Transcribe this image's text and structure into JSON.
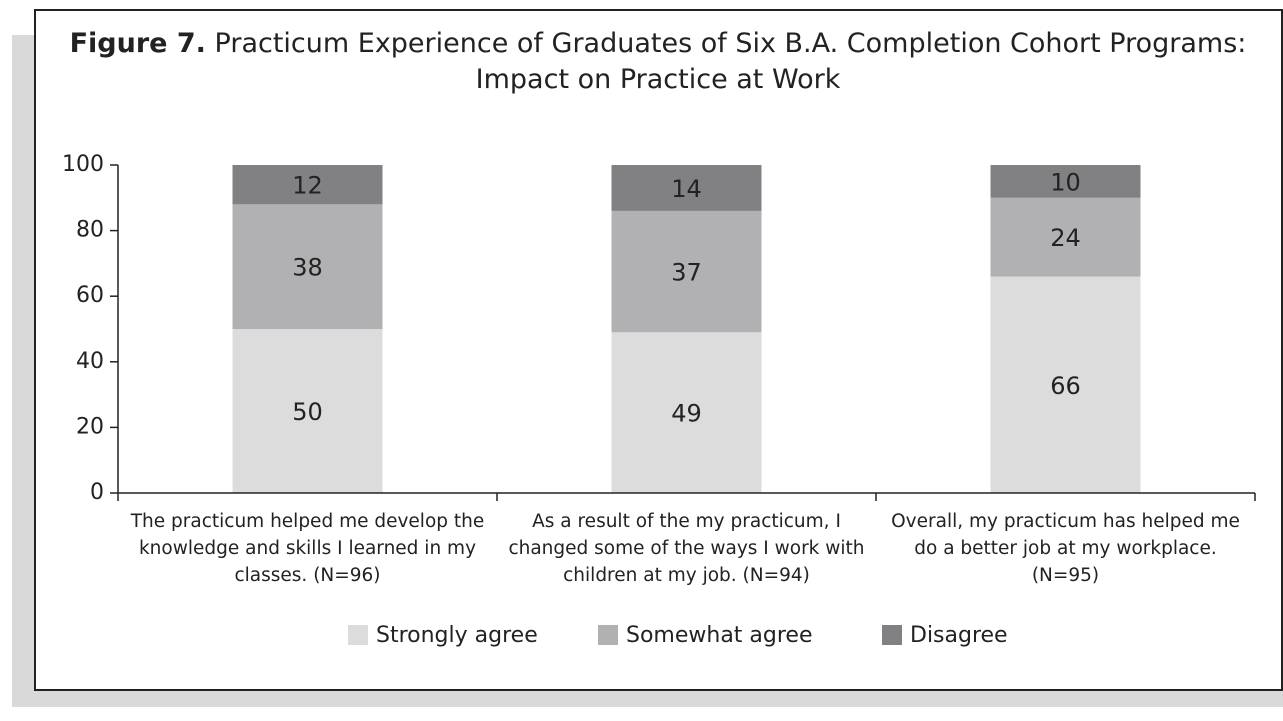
{
  "chart_data": {
    "type": "stacked_bar",
    "figure_label": "Figure 7.",
    "title": "Practicum Experience of Graduates of Six B.A. Completion Cohort Programs: Impact on Practice at Work",
    "categories": [
      "The practicum helped me develop the knowledge and skills I learned in my classes. (N=96)",
      "As a result of the my practicum, I changed some of the ways I work with children at my job. (N=94)",
      "Overall, my practicum has helped me do a better job at my workplace. (N=95)"
    ],
    "series": [
      {
        "name": "Strongly agree",
        "color": "#dcdcdd",
        "values": [
          50,
          49,
          66
        ]
      },
      {
        "name": "Somewhat agree",
        "color": "#b1b1b3",
        "values": [
          38,
          37,
          24
        ]
      },
      {
        "name": "Disagree",
        "color": "#818184",
        "values": [
          12,
          14,
          10
        ]
      }
    ],
    "ylim": [
      0,
      100
    ],
    "yticks": [
      0,
      20,
      40,
      60,
      80,
      100
    ],
    "grid": false,
    "legend": "bottom"
  }
}
